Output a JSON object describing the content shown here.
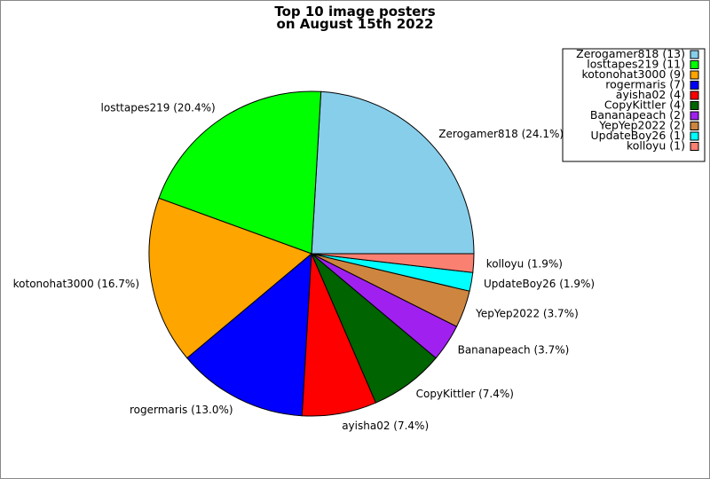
{
  "chart_data": {
    "type": "pie",
    "title_lines": [
      "Top 10 image posters",
      "on August 15th 2022"
    ],
    "legend_placement": "top-right",
    "slices": [
      {
        "name": "Zerogamer818",
        "value": 13,
        "percent_label": "24.1%",
        "color": "#87ceeb"
      },
      {
        "name": "losttapes219",
        "value": 11,
        "percent_label": "20.4%",
        "color": "#00ff00"
      },
      {
        "name": "kotonohat3000",
        "value": 9,
        "percent_label": "16.7%",
        "color": "#ffa500"
      },
      {
        "name": "rogermaris",
        "value": 7,
        "percent_label": "13.0%",
        "color": "#0000ff"
      },
      {
        "name": "ayisha02",
        "value": 4,
        "percent_label": "7.4%",
        "color": "#ff0000"
      },
      {
        "name": "CopyKittler",
        "value": 4,
        "percent_label": "7.4%",
        "color": "#006400"
      },
      {
        "name": "Bananapeach",
        "value": 2,
        "percent_label": "3.7%",
        "color": "#a020f0"
      },
      {
        "name": "YepYep2022",
        "value": 2,
        "percent_label": "3.7%",
        "color": "#cd853f"
      },
      {
        "name": "UpdateBoy26",
        "value": 1,
        "percent_label": "1.9%",
        "color": "#00ffff"
      },
      {
        "name": "kolloyu",
        "value": 1,
        "percent_label": "1.9%",
        "color": "#fa8072"
      }
    ]
  }
}
